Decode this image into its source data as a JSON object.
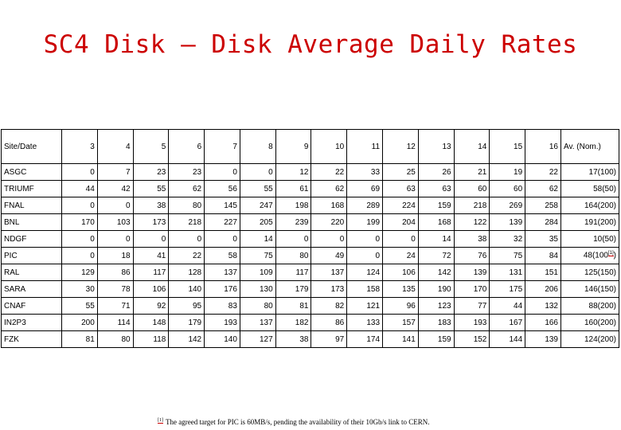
{
  "title": "SC4 Disk – Disk Average Daily Rates",
  "table": {
    "headers": [
      "Site/Date",
      "3",
      "4",
      "5",
      "6",
      "7",
      "8",
      "9",
      "10",
      "11",
      "12",
      "13",
      "14",
      "15",
      "16",
      "Av. (Nom.)"
    ],
    "rows": [
      {
        "site": "ASGC",
        "values": [
          "0",
          "7",
          "23",
          "23",
          "0",
          "0",
          "12",
          "22",
          "33",
          "25",
          "26",
          "21",
          "19",
          "22"
        ],
        "avg": "17",
        "nom": "(100)"
      },
      {
        "site": "TRIUMF",
        "values": [
          "44",
          "42",
          "55",
          "62",
          "56",
          "55",
          "61",
          "62",
          "69",
          "63",
          "63",
          "60",
          "60",
          "62"
        ],
        "avg": "58",
        "nom": "(50)"
      },
      {
        "site": "FNAL",
        "values": [
          "0",
          "0",
          "38",
          "80",
          "145",
          "247",
          "198",
          "168",
          "289",
          "224",
          "159",
          "218",
          "269",
          "258"
        ],
        "avg": "164",
        "nom": "(200)"
      },
      {
        "site": "BNL",
        "values": [
          "170",
          "103",
          "173",
          "218",
          "227",
          "205",
          "239",
          "220",
          "199",
          "204",
          "168",
          "122",
          "139",
          "284"
        ],
        "avg": "191",
        "nom": "(200)"
      },
      {
        "site": "NDGF",
        "values": [
          "0",
          "0",
          "0",
          "0",
          "0",
          "14",
          "0",
          "0",
          "0",
          "0",
          "14",
          "38",
          "32",
          "35"
        ],
        "avg": "10",
        "nom": "(50)"
      },
      {
        "site": "PIC",
        "values": [
          "0",
          "18",
          "41",
          "22",
          "58",
          "75",
          "80",
          "49",
          "0",
          "24",
          "72",
          "76",
          "75",
          "84"
        ],
        "avg": "48",
        "nom": "(100",
        "footnote_mark": "[1]",
        "nom_close": ")"
      },
      {
        "site": "RAL",
        "values": [
          "129",
          "86",
          "117",
          "128",
          "137",
          "109",
          "117",
          "137",
          "124",
          "106",
          "142",
          "139",
          "131",
          "151"
        ],
        "avg": "125",
        "nom": "(150)"
      },
      {
        "site": "SARA",
        "values": [
          "30",
          "78",
          "106",
          "140",
          "176",
          "130",
          "179",
          "173",
          "158",
          "135",
          "190",
          "170",
          "175",
          "206"
        ],
        "avg": "146",
        "nom": "(150)"
      },
      {
        "site": "CNAF",
        "values": [
          "55",
          "71",
          "92",
          "95",
          "83",
          "80",
          "81",
          "82",
          "121",
          "96",
          "123",
          "77",
          "44",
          "132"
        ],
        "avg": "88",
        "nom": "(200)"
      },
      {
        "site": "IN2P3",
        "values": [
          "200",
          "114",
          "148",
          "179",
          "193",
          "137",
          "182",
          "86",
          "133",
          "157",
          "183",
          "193",
          "167",
          "166"
        ],
        "avg": "160",
        "nom": "(200)"
      },
      {
        "site": "FZK",
        "values": [
          "81",
          "80",
          "118",
          "142",
          "140",
          "127",
          "38",
          "97",
          "174",
          "141",
          "159",
          "152",
          "144",
          "139"
        ],
        "avg": "124",
        "nom": "(200)"
      }
    ]
  },
  "footnote": {
    "mark": "[1]",
    "text": "The agreed target for PIC is 60MB/s, pending the availability of their 10Gb/s link to CERN."
  },
  "colors": {
    "title": "#cc0000",
    "footnote_underline": "#cc0000"
  }
}
